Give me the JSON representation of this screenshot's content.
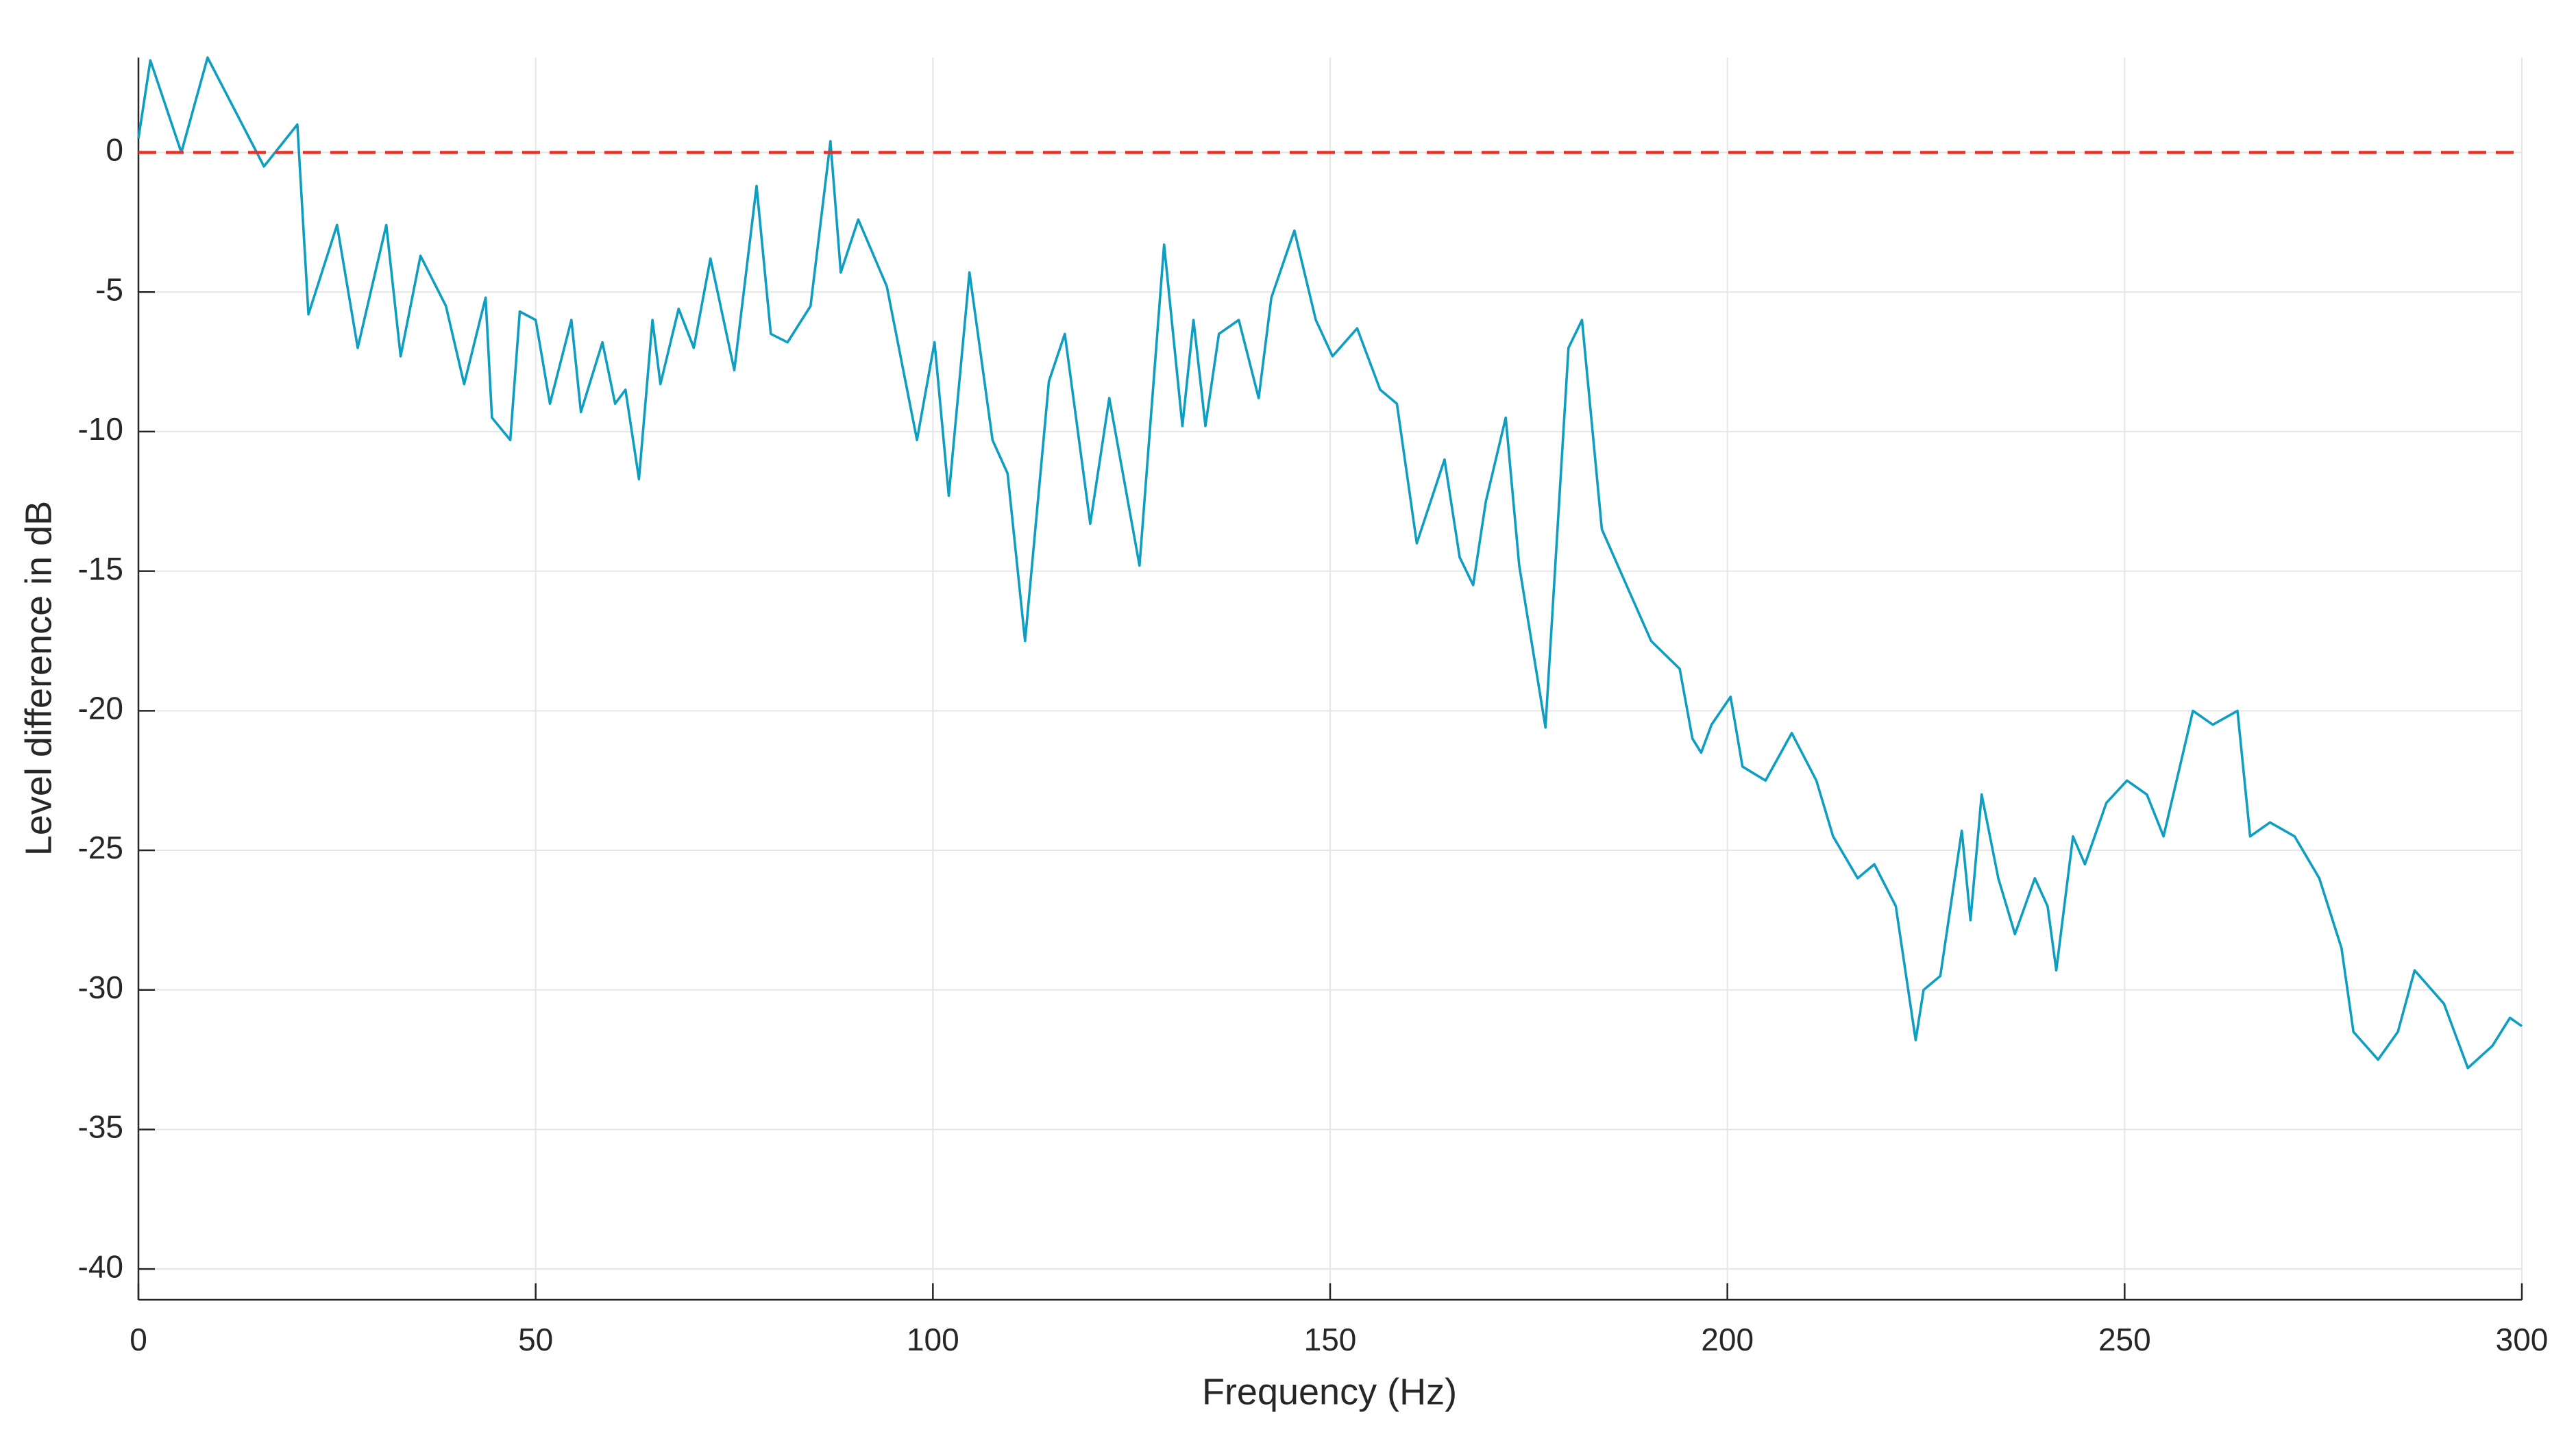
{
  "chart_data": {
    "type": "line",
    "xlabel": "Frequency (Hz)",
    "ylabel": "Level difference in dB",
    "x": [
      0,
      1.5,
      5.4,
      8.7,
      15.8,
      20,
      21.4,
      25,
      27.6,
      31.2,
      33,
      35.5,
      38.7,
      41,
      43.7,
      44.5,
      46.8,
      48,
      50,
      51.8,
      54.5,
      55.7,
      58.4,
      60,
      61.3,
      63,
      64.7,
      65.7,
      68,
      69.9,
      72,
      75,
      77.8,
      79.6,
      81.7,
      84.6,
      87.1,
      88.4,
      90.6,
      94.2,
      98,
      100.2,
      102,
      104.6,
      107.5,
      109.4,
      111.6,
      114.6,
      116.6,
      119.8,
      122.2,
      126,
      129.1,
      131.4,
      132.8,
      134.3,
      136,
      138.5,
      141,
      142.6,
      145.5,
      148.2,
      150.3,
      153.4,
      156.3,
      158.4,
      160.9,
      164.4,
      166.3,
      168,
      169.6,
      172.1,
      173.8,
      177.1,
      180,
      181.7,
      184.2,
      187.3,
      190.4,
      194,
      195.6,
      196.7,
      198,
      200.4,
      201.9,
      204.8,
      208.1,
      211.2,
      213.3,
      216.4,
      218.5,
      221.2,
      223.7,
      224.7,
      226.8,
      229.5,
      230.6,
      232,
      234.1,
      236.2,
      238.7,
      240.3,
      241.4,
      243.5,
      245,
      247.7,
      250.3,
      252.8,
      254.9,
      258.6,
      261.1,
      264.2,
      265.8,
      268.3,
      271.4,
      274.5,
      277.3,
      278.8,
      281.9,
      284.4,
      286.5,
      290.2,
      293.2,
      296.3,
      298.5,
      300
    ],
    "values": [
      0.5,
      3.3,
      0,
      3.4,
      -0.5,
      1,
      -5.8,
      -2.6,
      -7,
      -2.6,
      -7.3,
      -3.7,
      -5.5,
      -8.3,
      -5.2,
      -9.5,
      -10.3,
      -5.7,
      -6,
      -9,
      -6,
      -9.3,
      -6.8,
      -9,
      -8.5,
      -11.7,
      -6,
      -8.3,
      -5.6,
      -7,
      -3.8,
      -7.8,
      -1.2,
      -6.5,
      -6.8,
      -5.5,
      0.4,
      -4.3,
      -2.4,
      -4.8,
      -10.3,
      -6.8,
      -12.3,
      -4.3,
      -10.3,
      -11.5,
      -17.5,
      -8.2,
      -6.5,
      -13.3,
      -8.8,
      -14.8,
      -3.3,
      -9.8,
      -6,
      -9.8,
      -6.5,
      -6,
      -8.8,
      -5.2,
      -2.8,
      -6,
      -7.3,
      -6.3,
      -8.5,
      -9,
      -14,
      -11,
      -14.5,
      -15.5,
      -12.5,
      -9.5,
      -14.8,
      -20.6,
      -7,
      -6,
      -13.5,
      -15.5,
      -17.5,
      -18.5,
      -21,
      -21.5,
      -20.5,
      -19.5,
      -22,
      -22.5,
      -20.8,
      -22.5,
      -24.5,
      -26,
      -25.5,
      -27,
      -31.8,
      -30,
      -29.5,
      -24.3,
      -27.5,
      -23,
      -26,
      -28,
      -26,
      -27,
      -29.3,
      -24.5,
      -25.5,
      -23.3,
      -22.5,
      -23,
      -24.5,
      -20,
      -20.5,
      -20,
      -24.5,
      -24,
      -24.5,
      -26,
      -28.5,
      -31.5,
      -32.5,
      -31.5,
      -29.3,
      -30.5,
      -32.8,
      -32,
      -31,
      -31.3
    ],
    "color": "#0e9ec2",
    "reference_line": {
      "y": 0,
      "color": "#e2352a"
    },
    "xlim": [
      0,
      300
    ],
    "xticks": [
      0,
      50,
      100,
      150,
      200,
      250,
      300
    ],
    "ylim": [
      -41.1,
      3.4
    ],
    "yticks": [
      -40,
      -35,
      -30,
      -25,
      -20,
      -15,
      -10,
      -5,
      0
    ],
    "grid": true
  }
}
